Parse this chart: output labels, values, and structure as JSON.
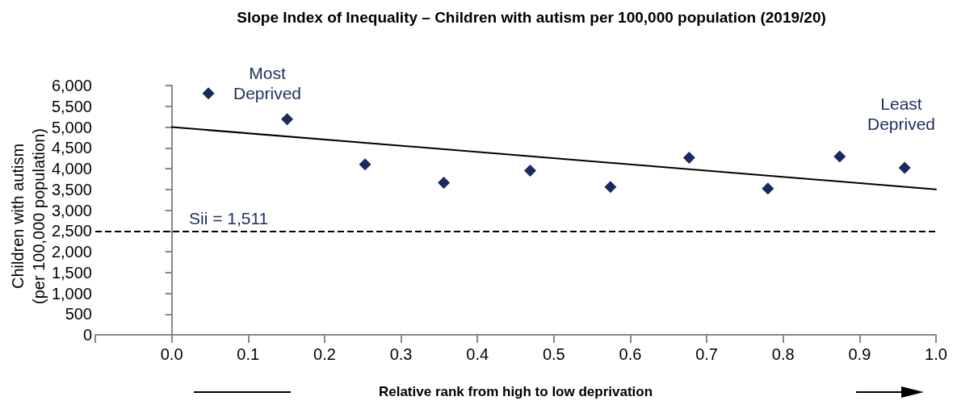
{
  "chart_data": {
    "type": "scatter",
    "title": "Slope Index of Inequality – Children with autism per 100,000 population (2019/20)",
    "xlabel": "Relative rank from high to low deprivation",
    "ylabel": "Children with autism\n(per 100,000 population)",
    "annotations": [
      "Most\nDeprived",
      "Least\nDeprived",
      "Sii = 1,511"
    ],
    "series": [
      {
        "color": "#1b2a5e",
        "marker": "diamond",
        "x": [
          0.048,
          0.151,
          0.253,
          0.356,
          0.469,
          0.574,
          0.677,
          0.78,
          0.874,
          0.959
        ],
        "values": [
          5810,
          5190,
          4100,
          3660,
          3950,
          3560,
          4260,
          3520,
          4290,
          4020
        ]
      },
      {
        "type": "line",
        "color": "#000000",
        "marker": "none",
        "line_style": "solid",
        "x": [
          0,
          1
        ],
        "values": [
          5000,
          3500
        ]
      }
    ],
    "ref_lines": [
      {
        "axis": "y",
        "value": 2500,
        "color": "#000000",
        "line_style": "dashed"
      }
    ],
    "xlim": [
      -0.1,
      1.0
    ],
    "xticks": [
      {
        "value": -0.1,
        "label": null
      },
      {
        "value": 0,
        "label": "0.0"
      },
      0.1,
      0.2,
      0.3,
      0.4,
      0.5,
      0.6,
      0.7,
      0.8,
      0.9,
      {
        "value": 1,
        "label": "1.0"
      }
    ],
    "ylim": [
      0,
      6000
    ],
    "yticks": [
      0,
      500,
      {
        "value": 1000,
        "label": "1,000"
      },
      {
        "value": 1500,
        "label": "1,500"
      },
      {
        "value": 2000,
        "label": "2,000"
      },
      {
        "value": 2500,
        "label": "2,500"
      },
      {
        "value": 3000,
        "label": "3,000"
      },
      {
        "value": 3500,
        "label": "3,500"
      },
      {
        "value": 4000,
        "label": "4,000"
      },
      {
        "value": 4500,
        "label": "4,500"
      },
      {
        "value": 5000,
        "label": "5,000"
      },
      {
        "value": 5500,
        "label": "5,500"
      },
      {
        "value": 6000,
        "label": "6,000"
      }
    ],
    "grid": false
  }
}
